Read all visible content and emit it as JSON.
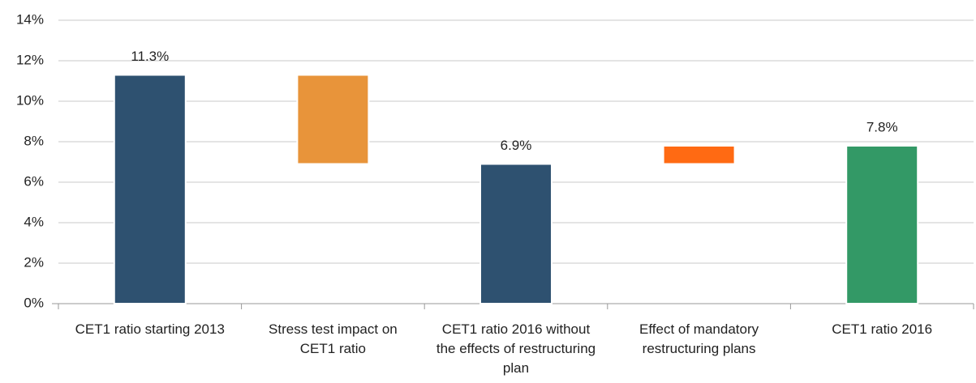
{
  "chart_data": {
    "type": "waterfall",
    "categories": [
      "CET1 ratio starting 2013",
      "Stress test impact on CET1 ratio",
      "CET1 ratio 2016 without the effects of restructuring plan",
      "Effect of mandatory restructuring plans",
      "CET1 ratio 2016"
    ],
    "values": [
      11.3,
      -4.4,
      6.9,
      0.9,
      7.8
    ],
    "value_labels": [
      "11.3%",
      null,
      "6.9%",
      null,
      "7.8%"
    ],
    "totals": [
      true,
      false,
      true,
      false,
      true
    ],
    "colors": [
      "#2e5170",
      "#e8943a",
      "#2e5170",
      "#ff6a13",
      "#339966"
    ],
    "ylim": [
      0,
      14
    ],
    "yticks": [
      {
        "value": 0,
        "label": "0%"
      },
      {
        "value": 2,
        "label": "2%"
      },
      {
        "value": 4,
        "label": "4%"
      },
      {
        "value": 6,
        "label": "6%"
      },
      {
        "value": 8,
        "label": "8%"
      },
      {
        "value": 10,
        "label": "10%"
      },
      {
        "value": 12,
        "label": "12%"
      },
      {
        "value": 14,
        "label": "14%"
      }
    ],
    "grid": true
  }
}
